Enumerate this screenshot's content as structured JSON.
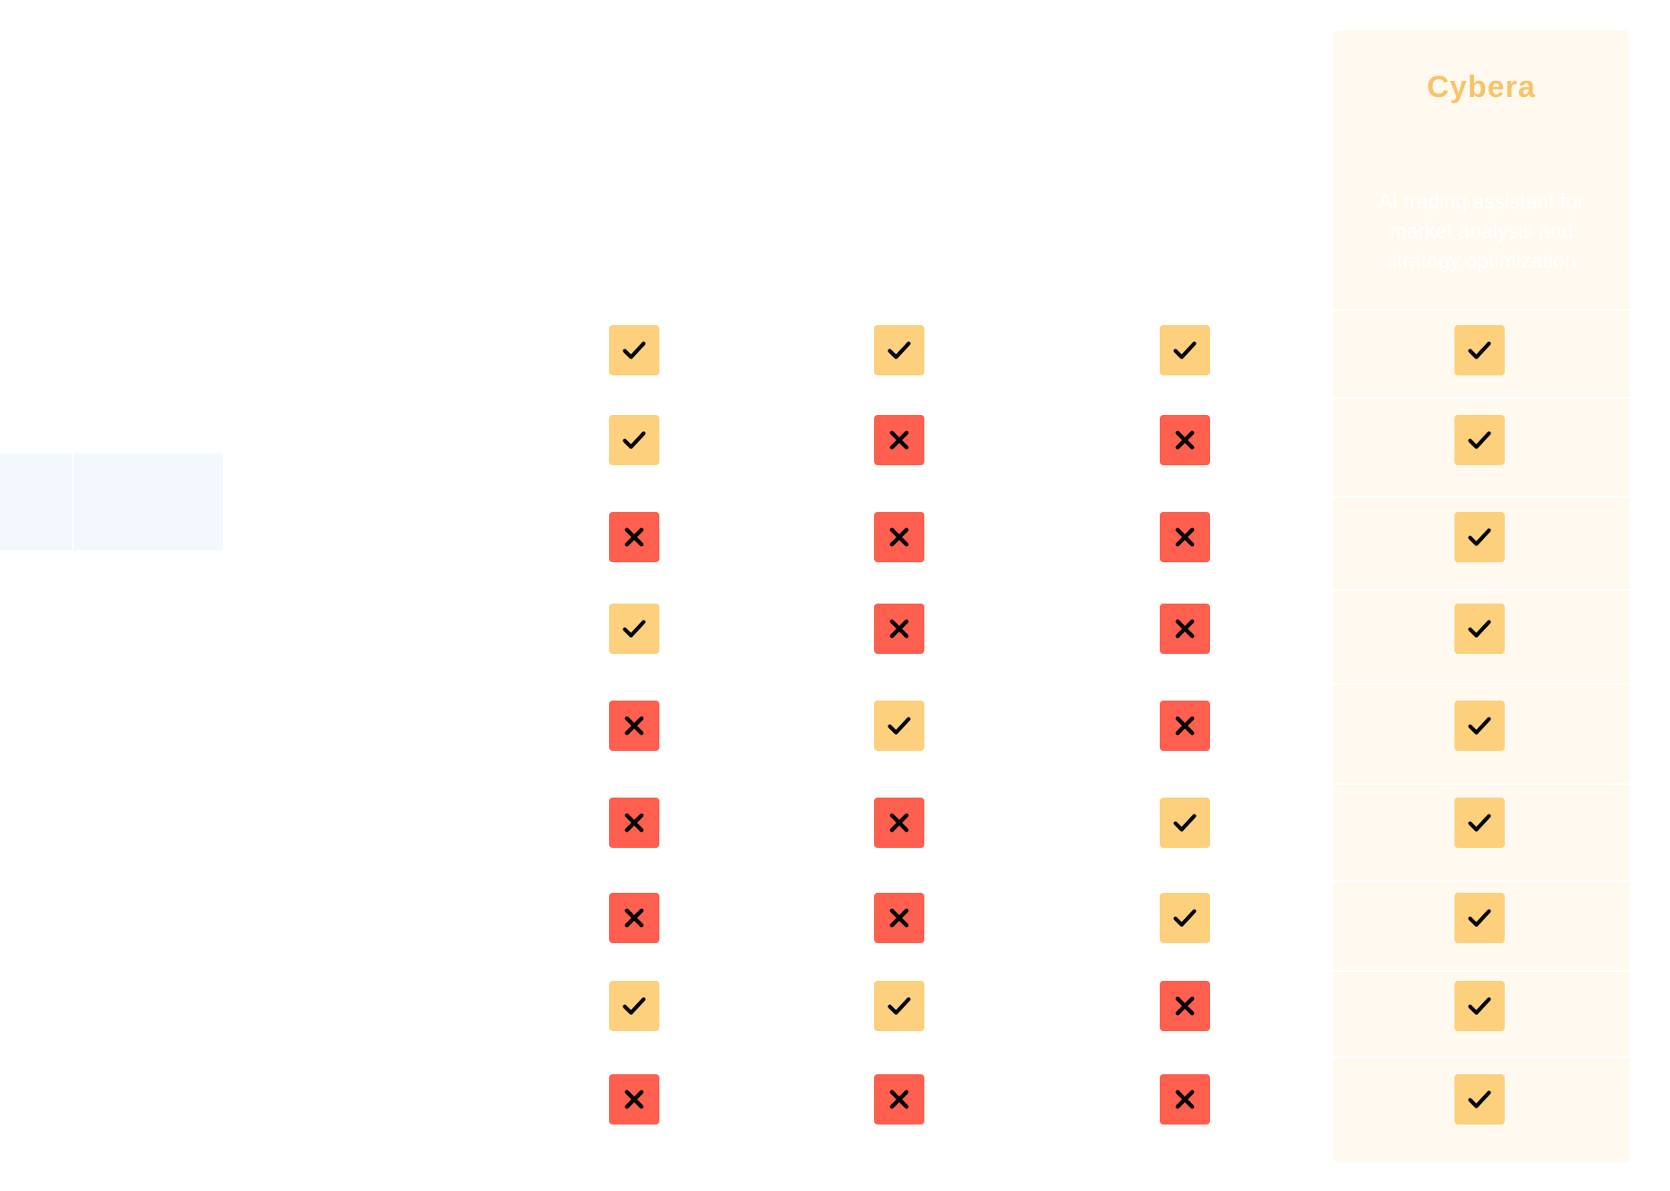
{
  "columns": [
    {
      "name": "",
      "description": ""
    },
    {
      "name": "",
      "description": ""
    },
    {
      "name": "",
      "description": ""
    },
    {
      "name": "Cybera",
      "description": "AI trading assistant for market analysis and strategy optimization"
    }
  ],
  "features_header": "",
  "features": [
    {
      "label": "",
      "values": [
        "yes",
        "yes",
        "yes",
        "yes"
      ]
    },
    {
      "label": "",
      "values": [
        "yes",
        "no",
        "no",
        "yes"
      ]
    },
    {
      "label": "",
      "values": [
        "no",
        "no",
        "no",
        "yes"
      ]
    },
    {
      "label": "",
      "values": [
        "yes",
        "no",
        "no",
        "yes"
      ]
    },
    {
      "label": "",
      "values": [
        "no",
        "yes",
        "no",
        "yes"
      ]
    },
    {
      "label": "",
      "values": [
        "no",
        "no",
        "yes",
        "yes"
      ]
    },
    {
      "label": "",
      "values": [
        "no",
        "no",
        "yes",
        "yes"
      ]
    },
    {
      "label": "",
      "values": [
        "yes",
        "yes",
        "no",
        "yes"
      ]
    },
    {
      "label": "",
      "values": [
        "no",
        "no",
        "no",
        "yes"
      ]
    }
  ],
  "colors": {
    "yes": "#fdd07e",
    "no": "#ff5f4e",
    "accent": "#f7c46b",
    "highlight_bg": "#fff9ef"
  },
  "icons": {
    "yes": "check-icon",
    "no": "cross-icon"
  }
}
